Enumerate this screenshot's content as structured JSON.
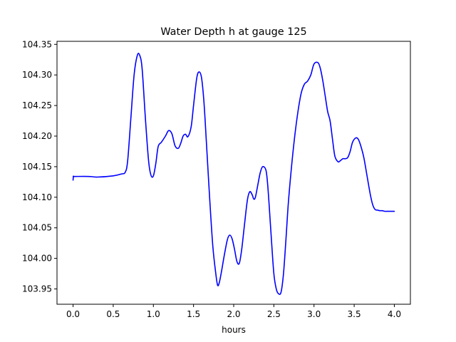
{
  "chart_data": {
    "type": "line",
    "title": "Water Depth h at gauge 125",
    "xlabel": "hours",
    "ylabel": "",
    "xlim": [
      -0.2,
      4.2
    ],
    "ylim": [
      103.925,
      104.355
    ],
    "xticks": [
      0.0,
      0.5,
      1.0,
      1.5,
      2.0,
      2.5,
      3.0,
      3.5,
      4.0
    ],
    "xtick_labels": [
      "0.0",
      "0.5",
      "1.0",
      "1.5",
      "2.0",
      "2.5",
      "3.0",
      "3.5",
      "4.0"
    ],
    "yticks": [
      103.95,
      104.0,
      104.05,
      104.1,
      104.15,
      104.2,
      104.25,
      104.3,
      104.35
    ],
    "ytick_labels": [
      "103.95",
      "104.00",
      "104.05",
      "104.10",
      "104.15",
      "104.20",
      "104.25",
      "104.30",
      "104.35"
    ],
    "grid": false,
    "series": [
      {
        "color": "#0000ff",
        "x": [
          0.0,
          0.005,
          0.02,
          0.2,
          0.3,
          0.5,
          0.6,
          0.65,
          0.68,
          0.72,
          0.76,
          0.8,
          0.83,
          0.86,
          0.9,
          0.94,
          0.97,
          1.0,
          1.03,
          1.06,
          1.1,
          1.15,
          1.19,
          1.23,
          1.27,
          1.31,
          1.34,
          1.37,
          1.4,
          1.43,
          1.47,
          1.5,
          1.54,
          1.57,
          1.6,
          1.63,
          1.66,
          1.7,
          1.74,
          1.78,
          1.8,
          1.82,
          1.85,
          1.88,
          1.92,
          1.95,
          1.98,
          2.01,
          2.04,
          2.07,
          2.1,
          2.13,
          2.17,
          2.2,
          2.23,
          2.25,
          2.27,
          2.3,
          2.33,
          2.36,
          2.4,
          2.42,
          2.44,
          2.47,
          2.5,
          2.53,
          2.56,
          2.59,
          2.62,
          2.65,
          2.68,
          2.72,
          2.76,
          2.8,
          2.84,
          2.88,
          2.92,
          2.96,
          3.0,
          3.05,
          3.08,
          3.11,
          3.14,
          3.17,
          3.2,
          3.23,
          3.26,
          3.3,
          3.33,
          3.36,
          3.39,
          3.42,
          3.45,
          3.48,
          3.52,
          3.55,
          3.58,
          3.62,
          3.66,
          3.7,
          3.73,
          3.76,
          3.79,
          3.82,
          3.85,
          3.88,
          3.91,
          3.94,
          3.97,
          4.0
        ],
        "y": [
          104.128,
          104.134,
          104.134,
          104.134,
          104.133,
          104.135,
          104.138,
          104.141,
          104.16,
          104.23,
          104.3,
          104.332,
          104.332,
          104.31,
          104.23,
          104.16,
          104.136,
          104.135,
          104.155,
          104.183,
          104.19,
          104.2,
          104.209,
          104.204,
          104.184,
          104.18,
          104.188,
          104.2,
          104.203,
          104.199,
          104.215,
          104.25,
          104.295,
          104.305,
          104.295,
          104.255,
          104.19,
          104.1,
          104.02,
          103.972,
          103.956,
          103.96,
          103.98,
          104.003,
          104.03,
          104.038,
          104.032,
          104.015,
          103.995,
          103.992,
          104.015,
          104.05,
          104.095,
          104.109,
          104.104,
          104.097,
          104.1,
          104.12,
          104.14,
          104.15,
          104.145,
          104.125,
          104.09,
          104.03,
          103.975,
          103.95,
          103.942,
          103.945,
          103.975,
          104.03,
          104.09,
          104.15,
          104.2,
          104.24,
          104.27,
          104.285,
          104.29,
          104.3,
          104.318,
          104.32,
          104.31,
          104.29,
          104.265,
          104.24,
          104.225,
          104.195,
          104.167,
          104.158,
          104.16,
          104.163,
          104.163,
          104.165,
          104.175,
          104.19,
          104.197,
          104.195,
          104.185,
          104.165,
          104.135,
          104.105,
          104.088,
          104.08,
          104.079,
          104.078,
          104.078,
          104.077,
          104.077,
          104.077,
          104.077,
          104.077
        ]
      }
    ]
  }
}
